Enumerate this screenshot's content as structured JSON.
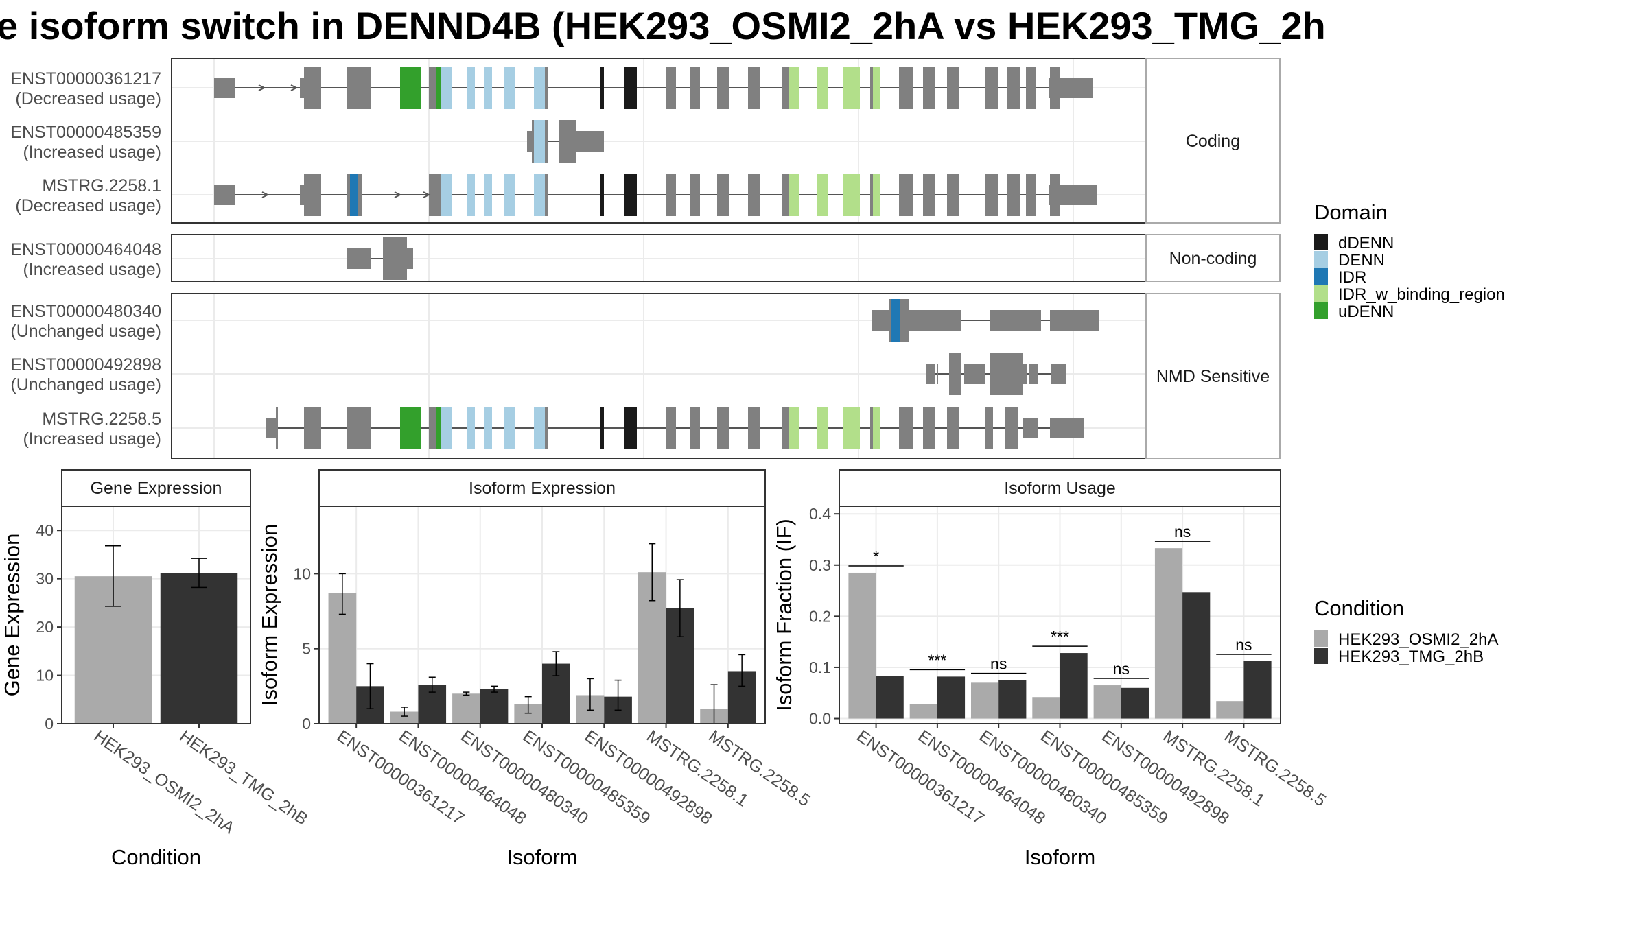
{
  "title": "e isoform switch in DENND4B (HEK293_OSMI2_2hA vs HEK293_TMG_2h",
  "colors": {
    "exon": "#808080",
    "dDENN": "#1a1a1a",
    "DENN": "#a6cee3",
    "IDR": "#1f78b4",
    "IDR_w_binding_region": "#b2df8a",
    "uDENN": "#33a02c",
    "cond_a": "#aaaaaa",
    "cond_b": "#333333"
  },
  "structure": {
    "facets": [
      {
        "label": "Coding",
        "transcripts": [
          {
            "id": "ENST00000361217",
            "usage": "(Decreased usage)"
          },
          {
            "id": "ENST00000485359",
            "usage": "(Increased usage)"
          },
          {
            "id": "MSTRG.2258.1",
            "usage": "(Decreased usage)"
          }
        ]
      },
      {
        "label": "Non-coding",
        "transcripts": [
          {
            "id": "ENST00000464048",
            "usage": "(Increased usage)"
          }
        ]
      },
      {
        "label": "NMD Sensitive",
        "transcripts": [
          {
            "id": "ENST00000480340",
            "usage": "(Unchanged usage)"
          },
          {
            "id": "ENST00000492898",
            "usage": "(Unchanged usage)"
          },
          {
            "id": "MSTRG.2258.5",
            "usage": "(Increased usage)"
          }
        ]
      }
    ],
    "domain_legend": {
      "title": "Domain",
      "items": [
        "dDENN",
        "DENN",
        "IDR",
        "IDR_w_binding_region",
        "uDENN"
      ]
    }
  },
  "condition_legend": {
    "title": "Condition",
    "items": [
      "HEK293_OSMI2_2hA",
      "HEK293_TMG_2hB"
    ]
  },
  "chart_data": [
    {
      "type": "bar",
      "title": "Gene Expression",
      "xlabel": "Condition",
      "ylabel": "Gene Expression",
      "categories": [
        "HEK293_OSMI2_2hA",
        "HEK293_TMG_2hB"
      ],
      "values": [
        30.5,
        31.2
      ],
      "error_low": [
        24.3,
        28.2
      ],
      "error_high": [
        36.8,
        34.2
      ],
      "ylim": [
        0,
        45
      ],
      "yticks": [
        0,
        10,
        20,
        30,
        40
      ]
    },
    {
      "type": "bar",
      "title": "Isoform Expression",
      "xlabel": "Isoform",
      "ylabel": "Isoform Expression",
      "categories": [
        "ENST00000361217",
        "ENST00000464048",
        "ENST00000480340",
        "ENST00000485359",
        "ENST00000492898",
        "MSTRG.2258.1",
        "MSTRG.2258.5"
      ],
      "series": [
        {
          "values": [
            8.7,
            0.8,
            2.0,
            1.3,
            1.9,
            10.1,
            1.0
          ],
          "error_low": [
            7.3,
            0.5,
            1.9,
            0.7,
            0.9,
            8.2,
            0.0
          ],
          "error_high": [
            10.0,
            1.1,
            2.1,
            1.8,
            3.0,
            12.0,
            2.6
          ]
        },
        {
          "values": [
            2.5,
            2.6,
            2.3,
            4.0,
            1.8,
            7.7,
            3.5
          ],
          "error_low": [
            1.0,
            2.1,
            2.1,
            3.2,
            0.9,
            5.8,
            2.5
          ],
          "error_high": [
            4.0,
            3.1,
            2.5,
            4.8,
            2.9,
            9.6,
            4.6
          ]
        }
      ],
      "ylim": [
        0,
        14.5
      ],
      "yticks": [
        0,
        5,
        10
      ]
    },
    {
      "type": "bar",
      "title": "Isoform Usage",
      "xlabel": "Isoform",
      "ylabel": "Isoform Fraction (IF)",
      "categories": [
        "ENST00000361217",
        "ENST00000464048",
        "ENST00000480340",
        "ENST00000485359",
        "ENST00000492898",
        "MSTRG.2258.1",
        "MSTRG.2258.5"
      ],
      "series": [
        {
          "values": [
            0.285,
            0.028,
            0.07,
            0.042,
            0.065,
            0.333,
            0.034
          ]
        },
        {
          "values": [
            0.083,
            0.082,
            0.075,
            0.128,
            0.06,
            0.247,
            0.112
          ]
        }
      ],
      "significance": [
        "*",
        "***",
        "ns",
        "***",
        "ns",
        "ns",
        "ns"
      ],
      "ylim": [
        -0.01,
        0.415
      ],
      "yticks": [
        0.0,
        0.1,
        0.2,
        0.3,
        0.4
      ],
      "ytick_labels": [
        "0.0",
        "0.1",
        "0.2",
        "0.3",
        "0.4"
      ]
    }
  ]
}
